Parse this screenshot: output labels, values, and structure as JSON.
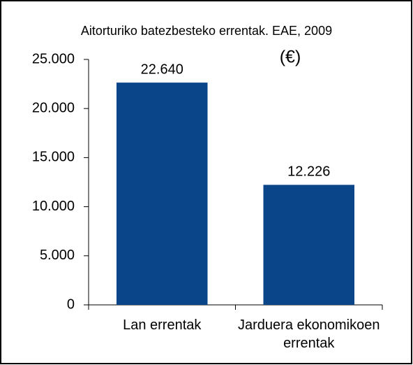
{
  "chart_data": {
    "type": "bar",
    "title": "Aitorturiko batezbesteko errentak. EAE, 2009",
    "annotation": "(€)",
    "categories": [
      "Lan errentak",
      "Jarduera ekonomikoen errentak"
    ],
    "values": [
      22640,
      12226
    ],
    "value_labels": [
      "22.640",
      "12.226"
    ],
    "color": "#0a4589",
    "ylim": [
      0,
      25000
    ],
    "yticks": [
      0,
      {
        "value": 5000,
        "label": "5.000"
      },
      {
        "value": 10000,
        "label": "10.000"
      },
      {
        "value": 15000,
        "label": "15.000"
      },
      {
        "value": 20000,
        "label": "20.000"
      },
      {
        "value": 25000,
        "label": "25.000"
      }
    ],
    "grid": false
  }
}
